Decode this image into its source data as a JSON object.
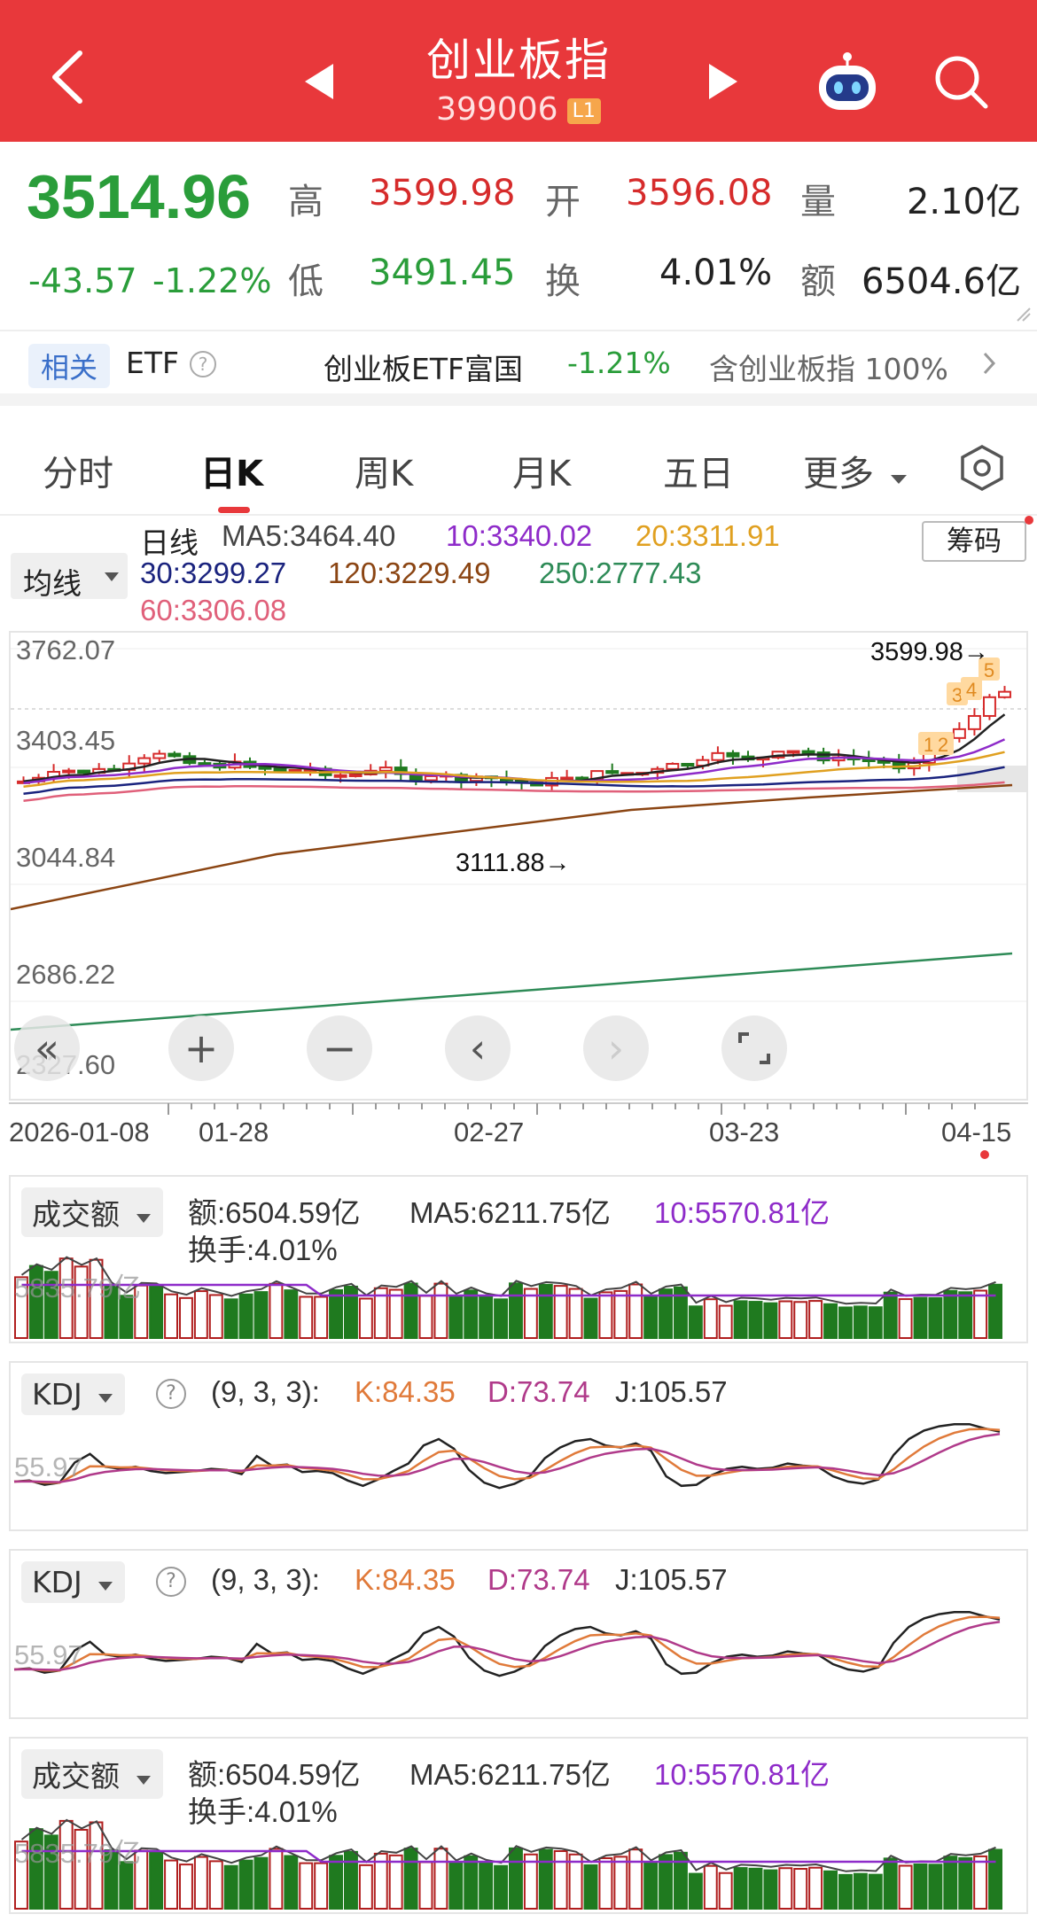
{
  "header": {
    "title": "创业板指",
    "code": "399006",
    "level": "L1"
  },
  "quote": {
    "price": "3514.96",
    "change": "-43.57",
    "change_pct": "-1.22%",
    "labels": {
      "high": "高",
      "open": "开",
      "volume": "量",
      "low": "低",
      "turnover": "换",
      "amount": "额"
    },
    "high": "3599.98",
    "open": "3596.08",
    "volume": "2.10亿",
    "low": "3491.45",
    "turnover": "4.01%",
    "amount": "6504.6亿"
  },
  "etf": {
    "tag": "相关",
    "label": "ETF",
    "name": "创业板ETF富国",
    "change": "-1.21%",
    "holding": "含创业板指 100%"
  },
  "tabs": [
    "分时",
    "日K",
    "周K",
    "月K",
    "五日",
    "更多"
  ],
  "active_tab": "日K",
  "ma_legend": {
    "selector": "均线",
    "line_type": "日线",
    "ma5": "MA5:3464.40",
    "ma10": "10:3340.02",
    "ma20": "20:3311.91",
    "ma30": "30:3299.27",
    "ma120": "120:3229.49",
    "ma250": "250:2777.43",
    "ma60": "60:3306.08",
    "chips_button": "筹码"
  },
  "kline": {
    "y_labels": [
      "3762.07",
      "3403.45",
      "3044.84",
      "2686.22",
      "2327.60"
    ],
    "high_mark": "3599.98→",
    "low_mark": "3111.88→",
    "x_labels": [
      "2026-01-08",
      "01-28",
      "02-27",
      "03-23",
      "04-15"
    ],
    "badges": [
      "1",
      "2",
      "3",
      "4",
      "5"
    ]
  },
  "volume_panel": {
    "selector": "成交额",
    "amount": "额:6504.59亿",
    "ma5": "MA5:6211.75亿",
    "ma10": "10:5570.81亿",
    "turnover": "换手:4.01%",
    "axis": "5835.79亿"
  },
  "kdj_panel": {
    "selector": "KDJ",
    "params": "(9, 3, 3):",
    "k": "K:84.35",
    "d": "D:73.74",
    "j": "J:105.57",
    "axis": "55.97"
  },
  "colors": {
    "up": "#d62b2b",
    "down": "#1f7a1f",
    "header": "#e8383b",
    "ma5": "#222222",
    "ma10": "#8e2bc9",
    "ma20": "#e0a020",
    "ma30": "#1a237e",
    "ma60": "#e0607a",
    "ma120": "#8b4513",
    "ma250": "#2e8b57"
  }
}
